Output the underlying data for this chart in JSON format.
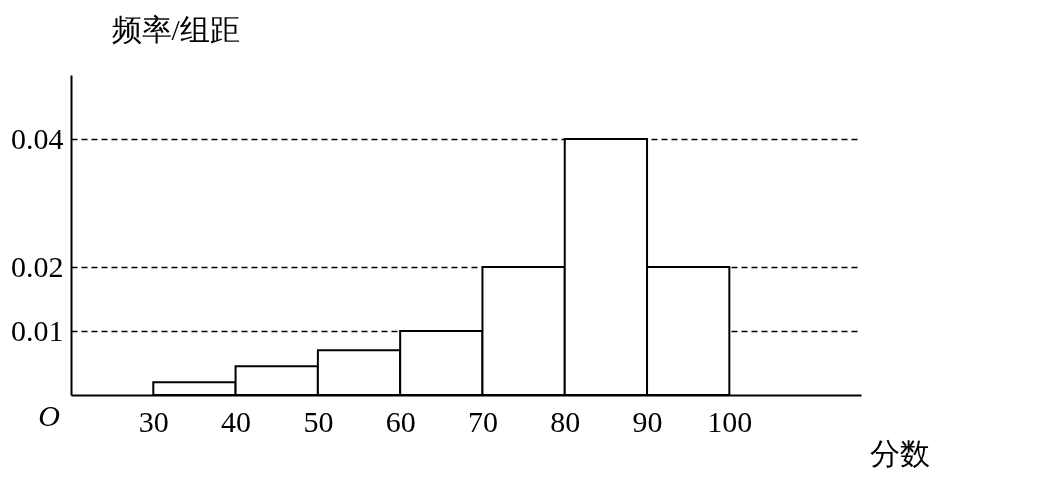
{
  "chart_data": {
    "type": "histogram",
    "bins": [
      30,
      40,
      50,
      60,
      70,
      80,
      90,
      100
    ],
    "values": [
      0.002,
      0.0045,
      0.007,
      0.01,
      0.02,
      0.04,
      0.02
    ],
    "color": "#ffffff",
    "xlabel": "分数",
    "ylabel": "频率/组距",
    "xlim": [
      20,
      116
    ],
    "xticks": [
      30,
      40,
      50,
      60,
      70,
      80,
      90,
      100
    ],
    "ylim": [
      0,
      0.05
    ],
    "yticks": [
      0.01,
      0.02,
      0.04
    ],
    "grid": "y",
    "line_style": "dashed",
    "annotations": [
      "O"
    ]
  }
}
